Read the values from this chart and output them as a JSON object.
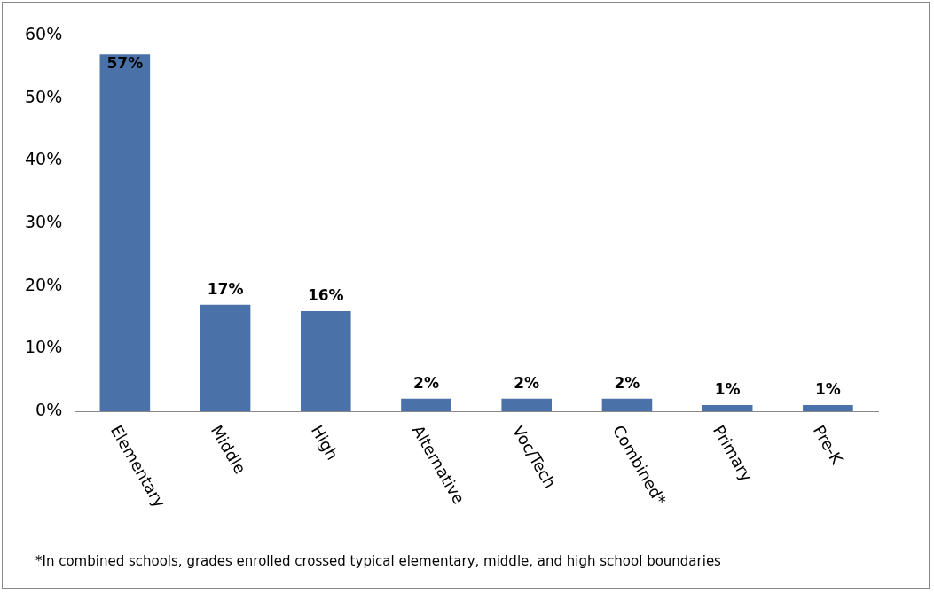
{
  "chart_data": {
    "type": "bar",
    "categories": [
      "Elementary",
      "Middle",
      "High",
      "Alternative",
      "Voc/Tech",
      "Combined*",
      "Primary",
      "Pre-K"
    ],
    "values": [
      57,
      17,
      16,
      2,
      2,
      2,
      1,
      1
    ],
    "value_labels": [
      "57%",
      "17%",
      "16%",
      "2%",
      "2%",
      "2%",
      "1%",
      "1%"
    ],
    "color": "#4a72a8",
    "ylim": [
      0,
      60
    ],
    "yticks": [
      {
        "value": 0,
        "label": "0%"
      },
      {
        "value": 10,
        "label": "10%"
      },
      {
        "value": 20,
        "label": "20%"
      },
      {
        "value": 30,
        "label": "30%"
      },
      {
        "value": 40,
        "label": "40%"
      },
      {
        "value": 50,
        "label": "50%"
      },
      {
        "value": 60,
        "label": "60%"
      }
    ],
    "grid": false,
    "legend": false,
    "annotations": [
      "*In combined schools, grades enrolled crossed typical elementary, middle, and high school boundaries"
    ]
  }
}
